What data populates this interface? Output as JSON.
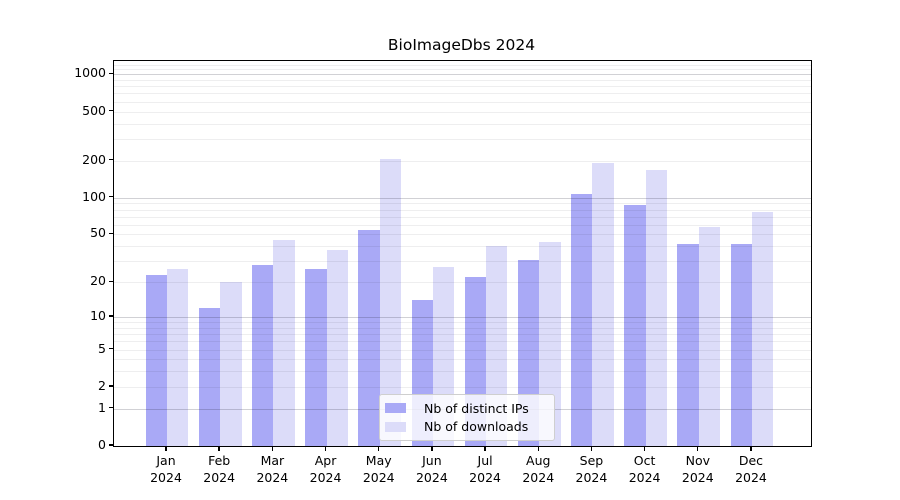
{
  "title": "BioImageDbs 2024",
  "chart_data": {
    "type": "bar",
    "title": "BioImageDbs 2024",
    "categories": [
      "Jan",
      "Feb",
      "Mar",
      "Apr",
      "May",
      "Jun",
      "Jul",
      "Aug",
      "Sep",
      "Oct",
      "Nov",
      "Dec"
    ],
    "x_year_label": "2024",
    "series": [
      {
        "name": "Nb of distinct IPs",
        "color": "#a9a9f6",
        "values": [
          23,
          12,
          28,
          26,
          54,
          14,
          22,
          31,
          108,
          88,
          42,
          42
        ]
      },
      {
        "name": "Nb of downloads",
        "color": "#dcdcf9",
        "values": [
          26,
          20,
          45,
          37,
          207,
          27,
          40,
          43,
          192,
          167,
          58,
          77
        ]
      }
    ],
    "y_ticks": [
      0,
      1,
      2,
      5,
      10,
      20,
      50,
      100,
      200,
      500,
      1000
    ],
    "y_scale": "log10(1+v)",
    "ylim": [
      0,
      1280
    ],
    "xlabel": "",
    "ylabel": "",
    "grid": true,
    "legend_position": "lower center inside plot"
  },
  "colors": {
    "bar_distinct_ips": "#a9a9f6",
    "bar_downloads": "#dcdcf9",
    "grid_major": "#d2d2d7",
    "grid_minor": "#ededf0",
    "axis": "#000000",
    "legend_border": "#cfcfcf"
  }
}
